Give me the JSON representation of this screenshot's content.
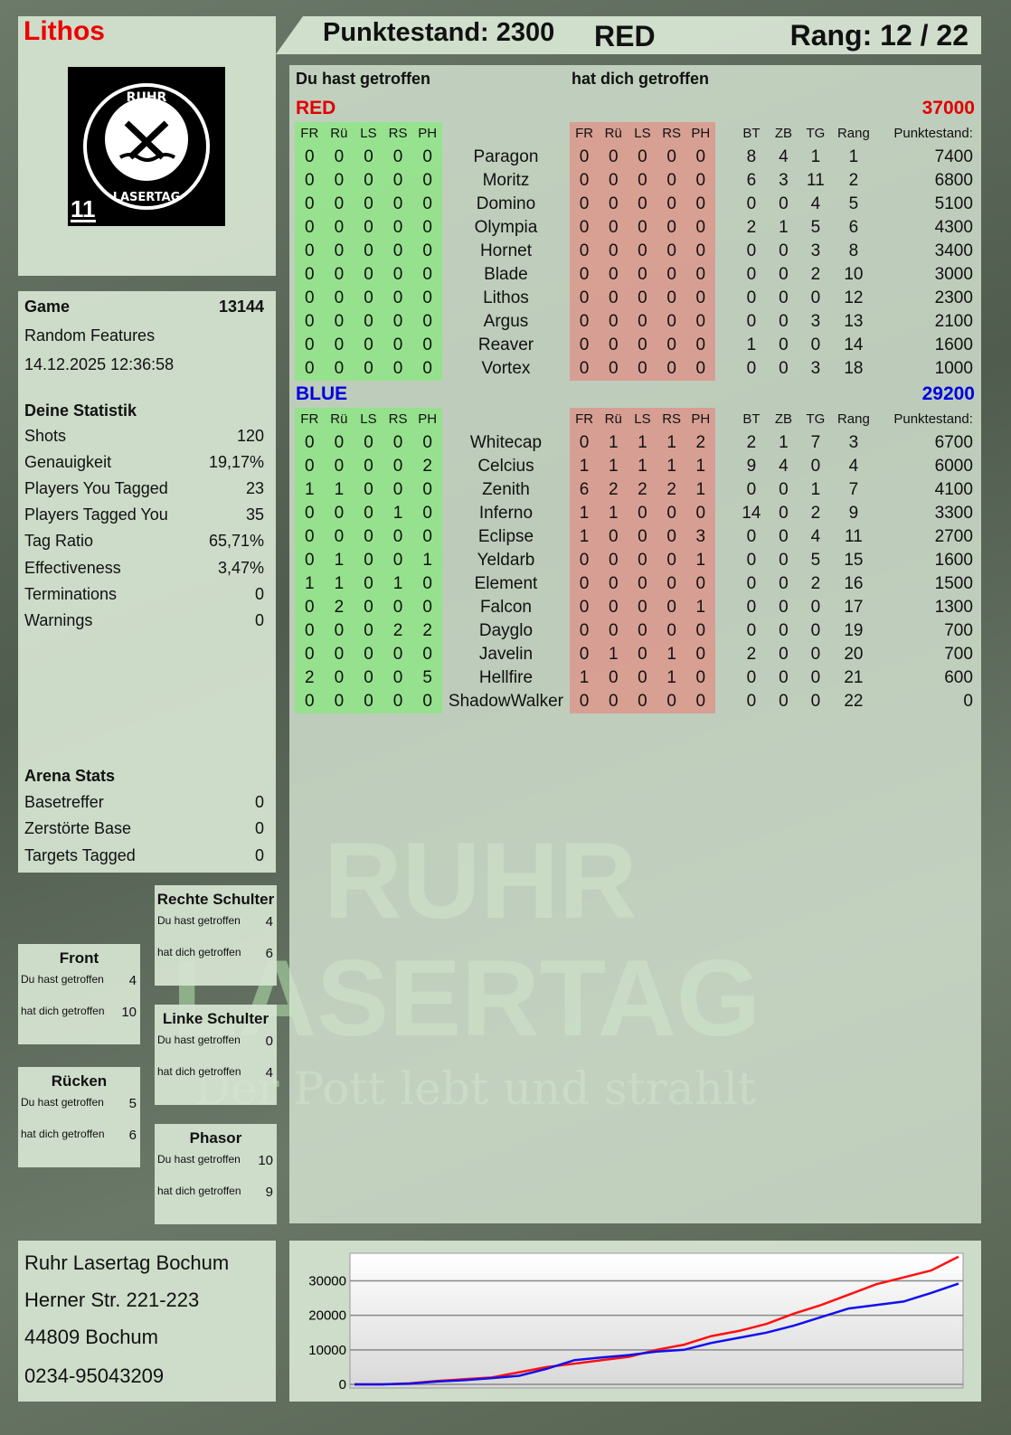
{
  "player": {
    "name": "Lithos",
    "jersey": "11",
    "logo_text": "RUHR LASERTAG"
  },
  "header": {
    "score_label": "Punktestand: 2300",
    "team": "RED",
    "rank_label": "Rang: 12 / 22"
  },
  "stats": {
    "game_label": "Game",
    "game_id": "13144",
    "mode": "Random Features",
    "datetime": "14.12.2025 12:36:58",
    "section_title": "Deine Statistik",
    "items": [
      {
        "label": "Shots",
        "value": "120"
      },
      {
        "label": "Genauigkeit",
        "value": "19,17%"
      },
      {
        "label": "Players You Tagged",
        "value": "23"
      },
      {
        "label": "Players Tagged You",
        "value": "35"
      },
      {
        "label": "Tag Ratio",
        "value": "65,71%"
      },
      {
        "label": "Effectiveness",
        "value": "3,47%"
      },
      {
        "label": "Terminations",
        "value": "0"
      },
      {
        "label": "Warnings",
        "value": "0"
      }
    ],
    "arena_title": "Arena Stats",
    "arena": [
      {
        "label": "Basetreffer",
        "value": "0"
      },
      {
        "label": "Zerstörte Base",
        "value": "0"
      },
      {
        "label": "Targets Tagged",
        "value": "0"
      }
    ]
  },
  "hits": {
    "you_hit": "Du hast getroffen",
    "hit_you": "hat dich getroffen",
    "zones": [
      {
        "name": "Rechte Schulter",
        "you": "4",
        "them": "6"
      },
      {
        "name": "Front",
        "you": "4",
        "them": "10"
      },
      {
        "name": "Linke Schulter",
        "you": "0",
        "them": "4"
      },
      {
        "name": "Rücken",
        "you": "5",
        "them": "6"
      },
      {
        "name": "Phasor",
        "you": "10",
        "them": "9"
      }
    ]
  },
  "table": {
    "you_hit_label": "Du hast getroffen",
    "hit_you_label": "hat dich getroffen",
    "cols_hit": [
      "FR",
      "Rü",
      "LS",
      "RS",
      "PH"
    ],
    "cols_stats": [
      "BT",
      "ZB",
      "TG",
      "Rang",
      "Punktestand:"
    ],
    "teams": [
      {
        "name": "RED",
        "score": "37000",
        "color": "#e00000",
        "rows": [
          [
            "0",
            "0",
            "0",
            "0",
            "0",
            "Paragon",
            "0",
            "0",
            "0",
            "0",
            "0",
            "8",
            "4",
            "1",
            "1",
            "7400"
          ],
          [
            "0",
            "0",
            "0",
            "0",
            "0",
            "Moritz",
            "0",
            "0",
            "0",
            "0",
            "0",
            "6",
            "3",
            "11",
            "2",
            "6800"
          ],
          [
            "0",
            "0",
            "0",
            "0",
            "0",
            "Domino",
            "0",
            "0",
            "0",
            "0",
            "0",
            "0",
            "0",
            "4",
            "5",
            "5100"
          ],
          [
            "0",
            "0",
            "0",
            "0",
            "0",
            "Olympia",
            "0",
            "0",
            "0",
            "0",
            "0",
            "2",
            "1",
            "5",
            "6",
            "4300"
          ],
          [
            "0",
            "0",
            "0",
            "0",
            "0",
            "Hornet",
            "0",
            "0",
            "0",
            "0",
            "0",
            "0",
            "0",
            "3",
            "8",
            "3400"
          ],
          [
            "0",
            "0",
            "0",
            "0",
            "0",
            "Blade",
            "0",
            "0",
            "0",
            "0",
            "0",
            "0",
            "0",
            "2",
            "10",
            "3000"
          ],
          [
            "0",
            "0",
            "0",
            "0",
            "0",
            "Lithos",
            "0",
            "0",
            "0",
            "0",
            "0",
            "0",
            "0",
            "0",
            "12",
            "2300"
          ],
          [
            "0",
            "0",
            "0",
            "0",
            "0",
            "Argus",
            "0",
            "0",
            "0",
            "0",
            "0",
            "0",
            "0",
            "3",
            "13",
            "2100"
          ],
          [
            "0",
            "0",
            "0",
            "0",
            "0",
            "Reaver",
            "0",
            "0",
            "0",
            "0",
            "0",
            "1",
            "0",
            "0",
            "14",
            "1600"
          ],
          [
            "0",
            "0",
            "0",
            "0",
            "0",
            "Vortex",
            "0",
            "0",
            "0",
            "0",
            "0",
            "0",
            "0",
            "3",
            "18",
            "1000"
          ]
        ]
      },
      {
        "name": "BLUE",
        "score": "29200",
        "color": "#0000e0",
        "rows": [
          [
            "0",
            "0",
            "0",
            "0",
            "0",
            "Whitecap",
            "0",
            "1",
            "1",
            "1",
            "2",
            "2",
            "1",
            "7",
            "3",
            "6700"
          ],
          [
            "0",
            "0",
            "0",
            "0",
            "2",
            "Celcius",
            "1",
            "1",
            "1",
            "1",
            "1",
            "9",
            "4",
            "0",
            "4",
            "6000"
          ],
          [
            "1",
            "1",
            "0",
            "0",
            "0",
            "Zenith",
            "6",
            "2",
            "2",
            "2",
            "1",
            "0",
            "0",
            "1",
            "7",
            "4100"
          ],
          [
            "0",
            "0",
            "0",
            "1",
            "0",
            "Inferno",
            "1",
            "1",
            "0",
            "0",
            "0",
            "14",
            "0",
            "2",
            "9",
            "3300"
          ],
          [
            "0",
            "0",
            "0",
            "0",
            "0",
            "Eclipse",
            "1",
            "0",
            "0",
            "0",
            "3",
            "0",
            "0",
            "4",
            "11",
            "2700"
          ],
          [
            "0",
            "1",
            "0",
            "0",
            "1",
            "Yeldarb",
            "0",
            "0",
            "0",
            "0",
            "1",
            "0",
            "0",
            "5",
            "15",
            "1600"
          ],
          [
            "1",
            "1",
            "0",
            "1",
            "0",
            "Element",
            "0",
            "0",
            "0",
            "0",
            "0",
            "0",
            "0",
            "2",
            "16",
            "1500"
          ],
          [
            "0",
            "2",
            "0",
            "0",
            "0",
            "Falcon",
            "0",
            "0",
            "0",
            "0",
            "1",
            "0",
            "0",
            "0",
            "17",
            "1300"
          ],
          [
            "0",
            "0",
            "0",
            "2",
            "2",
            "Dayglo",
            "0",
            "0",
            "0",
            "0",
            "0",
            "0",
            "0",
            "0",
            "19",
            "700"
          ],
          [
            "0",
            "0",
            "0",
            "0",
            "0",
            "Javelin",
            "0",
            "1",
            "0",
            "1",
            "0",
            "2",
            "0",
            "0",
            "20",
            "700"
          ],
          [
            "2",
            "0",
            "0",
            "0",
            "5",
            "Hellfire",
            "1",
            "0",
            "0",
            "1",
            "0",
            "0",
            "0",
            "0",
            "21",
            "600"
          ],
          [
            "0",
            "0",
            "0",
            "0",
            "0",
            "ShadowWalker",
            "0",
            "0",
            "0",
            "0",
            "0",
            "0",
            "0",
            "0",
            "22",
            "0"
          ]
        ]
      }
    ]
  },
  "watermark": {
    "line1": "RUHR",
    "line2": "LASERTAG",
    "slogan": "Der Pott lebt und strahlt"
  },
  "address": {
    "name": "Ruhr Lasertag Bochum",
    "street": "Herner Str. 221-223",
    "city": "44809 Bochum",
    "phone": "0234-95043209"
  },
  "chart_data": {
    "type": "line",
    "ylim": [
      0,
      38000
    ],
    "yticks": [
      "0",
      "10000",
      "20000",
      "30000"
    ],
    "grid": true,
    "series": [
      {
        "color": "#ff1010",
        "values": [
          0,
          0,
          300,
          1000,
          1500,
          2000,
          3500,
          5000,
          6000,
          7000,
          8000,
          10000,
          11500,
          14000,
          15500,
          17500,
          20500,
          23000,
          26000,
          29000,
          31000,
          33000,
          37000
        ]
      },
      {
        "color": "#1010ee",
        "values": [
          0,
          0,
          200,
          800,
          1200,
          1800,
          2500,
          4500,
          7000,
          7800,
          8500,
          9500,
          10000,
          12000,
          13500,
          15000,
          17000,
          19500,
          22000,
          23000,
          24000,
          26500,
          29200
        ]
      }
    ]
  }
}
